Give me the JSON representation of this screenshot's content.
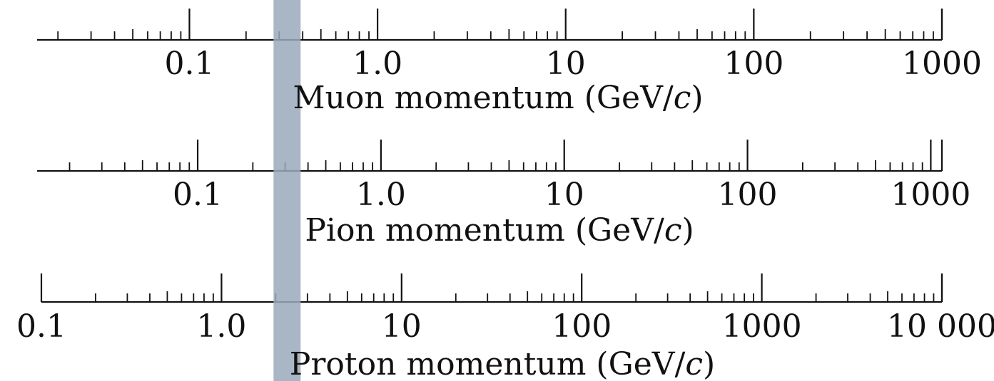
{
  "chart_data": [
    {
      "type": "log-scale",
      "xlabel": "Muon momentum (GeV/c)",
      "xlabel_prefix": "Muon momentum (GeV/",
      "xlabel_unit": "c",
      "xlabel_suffix": ")",
      "scale": "log",
      "xlim": [
        0.0155,
        1000
      ],
      "major_ticks": [
        0.1,
        1,
        10,
        100,
        1000
      ],
      "tick_labels": [
        "0.1",
        "1.0",
        "10",
        "100",
        "1000"
      ]
    },
    {
      "type": "log-scale",
      "xlabel": "Pion momentum (GeV/c)",
      "xlabel_prefix": "Pion momentum (GeV/",
      "xlabel_unit": "c",
      "xlabel_suffix": ")",
      "scale": "log",
      "xlim": [
        0.0133,
        1150
      ],
      "major_ticks": [
        0.1,
        1,
        10,
        100,
        1000
      ],
      "tick_labels": [
        "0.1",
        "1.0",
        "10",
        "100",
        "1000"
      ]
    },
    {
      "type": "log-scale",
      "xlabel": "Proton momentum (GeV/c)",
      "xlabel_prefix": "Proton momentum (GeV/",
      "xlabel_unit": "c",
      "xlabel_suffix": ")",
      "scale": "log",
      "xlim": [
        0.1,
        10000
      ],
      "major_ticks": [
        0.1,
        1,
        10,
        100,
        1000,
        10000
      ],
      "tick_labels": [
        "0.1",
        "1.0",
        "10",
        "100",
        "1000",
        "10 000"
      ]
    }
  ],
  "highlight_band": {
    "color": "#9aa9bb",
    "muon_range": [
      0.28,
      0.39
    ],
    "pion_range": [
      0.37,
      0.51
    ],
    "proton_range": [
      2.4,
      3.4
    ]
  }
}
